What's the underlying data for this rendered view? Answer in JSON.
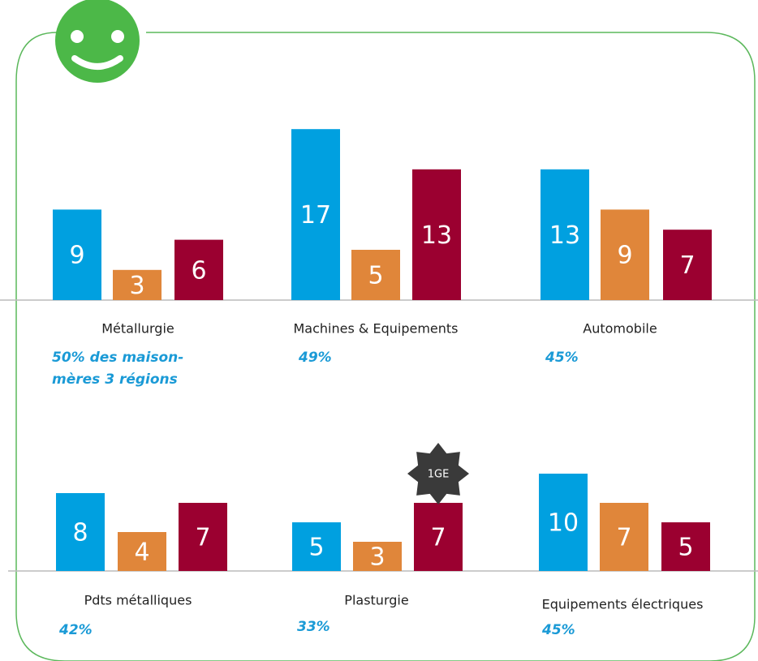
{
  "chart_data": [
    {
      "type": "bar",
      "title": "Métallurgie",
      "annotation": [
        "50% des maison-",
        "mères 3 régions"
      ],
      "values": [
        9,
        3,
        6
      ],
      "colors": [
        "#00a0e0",
        "#e0863a",
        "#9b0030"
      ]
    },
    {
      "type": "bar",
      "title": "Machines & Equipements",
      "annotation": [
        "49%"
      ],
      "values": [
        17,
        5,
        13
      ],
      "colors": [
        "#00a0e0",
        "#e0863a",
        "#9b0030"
      ]
    },
    {
      "type": "bar",
      "title": "Automobile",
      "annotation": [
        "45%"
      ],
      "values": [
        13,
        9,
        7
      ],
      "colors": [
        "#00a0e0",
        "#e0863a",
        "#9b0030"
      ]
    },
    {
      "type": "bar",
      "title": "Pdts métalliques",
      "annotation": [
        "42%"
      ],
      "values": [
        8,
        4,
        7
      ],
      "colors": [
        "#00a0e0",
        "#e0863a",
        "#9b0030"
      ]
    },
    {
      "type": "bar",
      "title": "Plasturgie",
      "annotation": [
        "33%"
      ],
      "values": [
        5,
        3,
        7
      ],
      "colors": [
        "#00a0e0",
        "#e0863a",
        "#9b0030"
      ],
      "badge": "1GE"
    },
    {
      "type": "bar",
      "title": "Equipements électriques",
      "annotation": [
        "45%"
      ],
      "values": [
        10,
        7,
        5
      ],
      "colors": [
        "#00a0e0",
        "#e0863a",
        "#9b0030"
      ]
    }
  ]
}
